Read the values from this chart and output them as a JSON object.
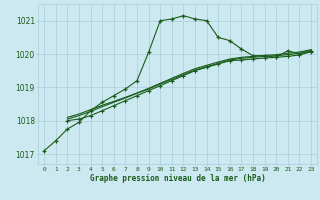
{
  "title": "Graphe pression niveau de la mer (hPa)",
  "background_color": "#cce8f0",
  "grid_color": "#aaccd8",
  "line_color": "#1a5c1a",
  "x_labels": [
    "0",
    "1",
    "2",
    "3",
    "4",
    "5",
    "6",
    "7",
    "8",
    "9",
    "10",
    "11",
    "12",
    "13",
    "14",
    "15",
    "16",
    "17",
    "18",
    "19",
    "20",
    "21",
    "22",
    "23"
  ],
  "ylim": [
    1016.7,
    1021.5
  ],
  "yticks": [
    1017,
    1018,
    1019,
    1020,
    1021
  ],
  "series1_x": [
    0,
    1,
    2,
    3,
    4,
    5,
    6,
    7,
    8,
    9,
    10,
    11,
    12,
    13,
    14,
    15,
    16,
    17,
    18,
    19,
    20,
    21,
    22,
    23
  ],
  "series1": [
    1017.1,
    1017.4,
    1017.75,
    1017.95,
    1018.3,
    1018.55,
    1018.75,
    1018.95,
    1019.2,
    1020.05,
    1021.0,
    1021.05,
    1021.15,
    1021.05,
    1021.0,
    1020.5,
    1020.4,
    1020.15,
    1019.95,
    1019.95,
    1019.9,
    1020.1,
    1020.0,
    1020.1
  ],
  "series2_x": [
    2,
    3,
    4,
    5,
    6,
    7,
    8,
    9,
    10,
    11,
    12,
    13,
    14,
    15,
    16,
    17,
    18,
    19,
    20,
    21,
    22,
    23
  ],
  "series2": [
    1018.0,
    1018.05,
    1018.15,
    1018.3,
    1018.45,
    1018.6,
    1018.75,
    1018.9,
    1019.05,
    1019.2,
    1019.35,
    1019.5,
    1019.6,
    1019.7,
    1019.8,
    1019.82,
    1019.85,
    1019.88,
    1019.9,
    1019.93,
    1019.97,
    1020.07
  ],
  "series3_x": [
    2,
    3,
    4,
    5,
    6,
    7,
    8,
    9,
    10,
    11,
    12,
    13,
    14,
    15,
    16,
    17,
    18,
    19,
    20,
    21,
    22,
    23
  ],
  "series3": [
    1018.05,
    1018.15,
    1018.28,
    1018.42,
    1018.55,
    1018.68,
    1018.82,
    1018.95,
    1019.1,
    1019.24,
    1019.38,
    1019.52,
    1019.62,
    1019.72,
    1019.82,
    1019.87,
    1019.9,
    1019.93,
    1019.95,
    1019.98,
    1020.02,
    1020.1
  ],
  "series4_x": [
    2,
    3,
    4,
    5,
    6,
    7,
    8,
    9,
    10,
    11,
    12,
    13,
    14,
    15,
    16,
    17,
    18,
    19,
    20,
    21,
    22,
    23
  ],
  "series4": [
    1018.1,
    1018.2,
    1018.33,
    1018.46,
    1018.58,
    1018.7,
    1018.83,
    1018.97,
    1019.12,
    1019.27,
    1019.42,
    1019.56,
    1019.66,
    1019.76,
    1019.85,
    1019.9,
    1019.93,
    1019.96,
    1019.98,
    1020.02,
    1020.06,
    1020.13
  ]
}
